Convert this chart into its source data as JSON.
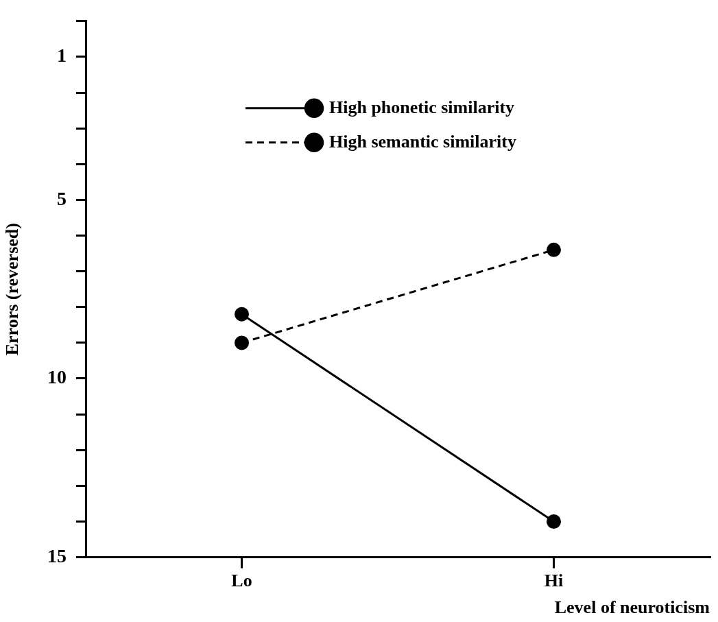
{
  "chart_data": {
    "type": "line",
    "xlabel": "Level of neuroticism",
    "ylabel": "Errors (reversed)",
    "categories": [
      "Lo",
      "Hi"
    ],
    "series": [
      {
        "name": "High phonetic similarity",
        "color": "#000000",
        "values": [
          8.2,
          14.0
        ],
        "line_style": "solid"
      },
      {
        "name": "High semantic similarity",
        "color": "#000000",
        "values": [
          9.0,
          6.4
        ],
        "line_style": "dashed"
      }
    ],
    "ylim": [
      15,
      0
    ],
    "yticks": [
      {
        "value": 0,
        "label": null
      },
      1,
      {
        "value": 2,
        "label": null
      },
      {
        "value": 3,
        "label": null
      },
      {
        "value": 4,
        "label": null
      },
      5,
      {
        "value": 6,
        "label": null
      },
      {
        "value": 7,
        "label": null
      },
      {
        "value": 8,
        "label": null
      },
      {
        "value": 9,
        "label": null
      },
      10,
      {
        "value": 11,
        "label": null
      },
      {
        "value": 12,
        "label": null
      },
      {
        "value": 13,
        "label": null
      },
      {
        "value": 14,
        "label": null
      },
      15
    ],
    "grid": false,
    "legend": "top",
    "marker": "circle"
  }
}
